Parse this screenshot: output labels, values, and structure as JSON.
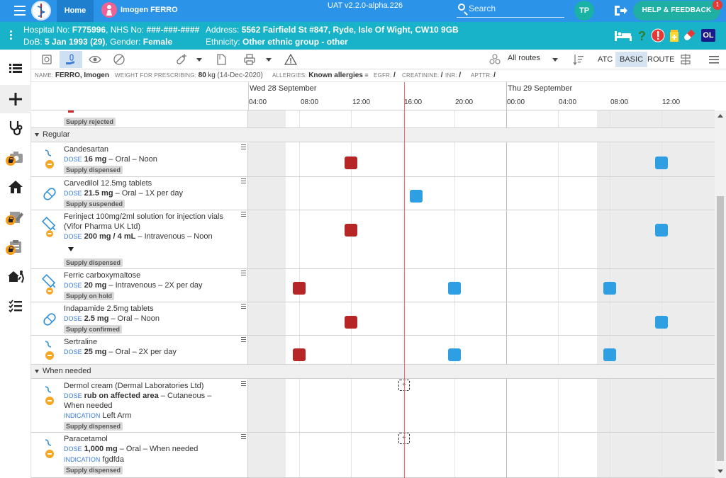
{
  "topbar": {
    "home_label": "Home",
    "patient_name": "Imogen FERRO",
    "version": "UAT v2.2.0-alpha.226",
    "search_placeholder": "Search",
    "user_initials": "TP",
    "help_label": "HELP & FEEDBACK",
    "help_badge": "1",
    "bar_color": "#2b93e8"
  },
  "banner": {
    "hospital_no_label": "Hospital No:",
    "hospital_no": "F775996",
    "nhs_label": "NHS No:",
    "nhs_no": "###-###-####",
    "dob_label": "DoB:",
    "dob": "5 Jan 1993 (29)",
    "gender_label": "Gender:",
    "gender": "Female",
    "address_label": "Address:",
    "address": "5562 Fairfield St #847, Ryde, Isle Of Wight, CW10 9GB",
    "ethnicity_label": "Ethnicity:",
    "ethnicity": "Other ethnic group - other",
    "ol_badge": "OL",
    "color": "#19b3c9"
  },
  "leftnav": {
    "items": [
      "list-icon",
      "plus-icon",
      "stethoscope-icon",
      "camera-icon",
      "home-icon",
      "edit-note-icon",
      "clipboard-icon",
      "emergency-exit-icon",
      "checklist-icon"
    ]
  },
  "toolbar": {
    "routes_label": "All routes",
    "toggle_atc": "ATC",
    "toggle_basic": "BASIC",
    "toggle_route": "ROUTE"
  },
  "infostrip": {
    "name_label": "NAME:",
    "name": "FERRO, Imogen",
    "weight_label": "WEIGHT FOR PRESCRIBING:",
    "weight": "80",
    "weight_unit": "kg",
    "weight_date": "(14-Dec-2020)",
    "allergies_label": "ALLERGIES:",
    "allergies": "Known allergies",
    "egfr_label": "EGFR:",
    "egfr": "/",
    "creatinine_label": "CREATININE:",
    "creatinine": "/",
    "inr_label": "INR:",
    "inr": "/",
    "apttr_label": "APTTR:",
    "apttr": "/"
  },
  "timeline": {
    "days": [
      "Wed 28 September",
      "Thu 29 September"
    ],
    "hours": [
      "04:00",
      "08:00",
      "12:00",
      "16:00",
      "20:00",
      "00:00",
      "04:00",
      "08:00",
      "12:00"
    ]
  },
  "chart": {
    "top_status": "Supply rejected",
    "sections": {
      "regular": "Regular",
      "when_needed": "When needed"
    },
    "dose_key": "DOSE",
    "indication_key": "INDICATION",
    "regular": [
      {
        "name": "Candesartan",
        "dose": "16 mg",
        "detail": " – Oral – Noon",
        "status": "Supply dispensed"
      },
      {
        "name": "Carvedilol 12.5mg tablets",
        "dose": "21.5 mg",
        "detail": " – Oral – 1X per day",
        "status": "Supply suspended"
      },
      {
        "name": "Ferinject 100mg/2ml solution for injection vials (Vifor Pharma UK Ltd)",
        "dose": "200 mg / 4 mL",
        "detail": " – Intravenous – Noon",
        "status": "Supply dispensed"
      },
      {
        "name": "Ferric carboxymaltose",
        "dose": "20 mg",
        "detail": " – Intravenous – 2X per day",
        "status": "Supply on hold"
      },
      {
        "name": "Indapamide 2.5mg tablets",
        "dose": "2.5 mg",
        "detail": " – Oral – Noon",
        "status": "Supply confirmed"
      },
      {
        "name": "Sertraline",
        "dose": "25 mg",
        "detail": " – Oral – 2X per day",
        "status": ""
      }
    ],
    "when_needed": [
      {
        "name": "Dermol cream (Dermal Laboratories Ltd)",
        "dose": "rub on affected area",
        "detail": " – Cutaneous – When needed",
        "indication": "Left Arm",
        "status": "Supply dispensed"
      },
      {
        "name": "Paracetamol",
        "dose": "1,000 mg",
        "detail": " – Oral – When needed",
        "indication": "fgdfda",
        "status": "Supply dispensed"
      }
    ],
    "colors": {
      "overdue": "#b72626",
      "due": "#2f9fe3",
      "now_line": "#e57373"
    }
  }
}
